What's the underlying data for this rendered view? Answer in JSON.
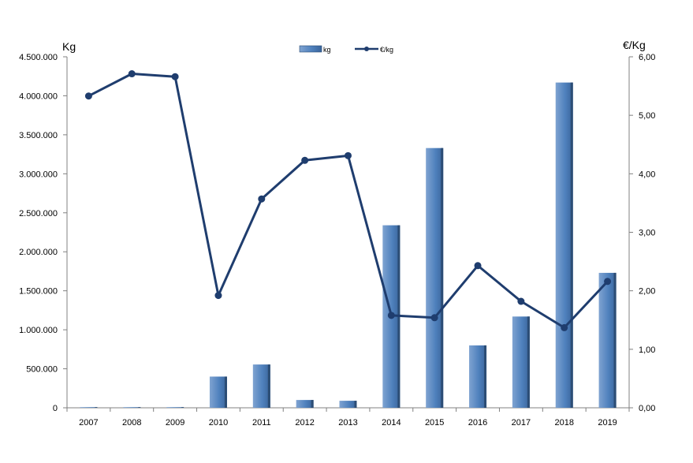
{
  "chart_data": {
    "type": "bar",
    "categories": [
      "2007",
      "2008",
      "2009",
      "2010",
      "2011",
      "2012",
      "2013",
      "2014",
      "2015",
      "2016",
      "2017",
      "2018",
      "2019"
    ],
    "series": [
      {
        "name": "kg",
        "type": "bar",
        "axis": "left",
        "values": [
          3000,
          3000,
          3000,
          400000,
          555000,
          100000,
          90000,
          2340000,
          3330000,
          800000,
          1170000,
          4170000,
          1730000
        ]
      },
      {
        "name": "€/kg",
        "type": "line",
        "axis": "right",
        "values": [
          5.33,
          5.71,
          5.66,
          1.92,
          3.57,
          4.23,
          4.31,
          1.58,
          1.54,
          2.43,
          1.82,
          1.37,
          2.16
        ]
      }
    ],
    "ylabel_left": "Kg",
    "ylabel_right": "€/Kg",
    "ylim_left": [
      0,
      4500000
    ],
    "ylim_right": [
      0,
      6
    ],
    "left_ticks": [
      "0",
      "500.000",
      "1.000.000",
      "1.500.000",
      "2.000.000",
      "2.500.000",
      "3.000.000",
      "3.500.000",
      "4.000.000",
      "4.500.000"
    ],
    "right_ticks": [
      "0,00",
      "1,00",
      "2,00",
      "3,00",
      "4,00",
      "5,00",
      "6,00"
    ],
    "legend_placement": "top-center",
    "grid": false,
    "colors": {
      "bar": "#4f81bd",
      "bar_dark": "#2c4d75",
      "line": "#1f3d6e"
    }
  }
}
